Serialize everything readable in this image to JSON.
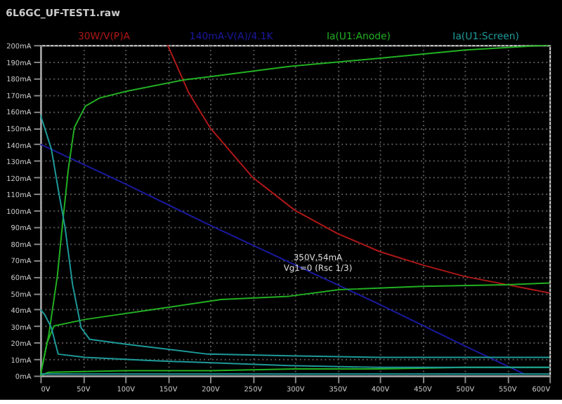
{
  "chart_data": {
    "type": "line",
    "title": "6L6GC_UF-TEST1.raw",
    "legend": "top",
    "grid": true,
    "marker": "none",
    "line_style": "solid",
    "xlim": [
      0,
      600
    ],
    "ylim": [
      0,
      200
    ],
    "xticks": [
      {
        "value": 0,
        "label": "0V"
      },
      {
        "value": 50,
        "label": "50V"
      },
      {
        "value": 100,
        "label": "100V"
      },
      {
        "value": 150,
        "label": "150V"
      },
      {
        "value": 200,
        "label": "200V"
      },
      {
        "value": 250,
        "label": "250V"
      },
      {
        "value": 300,
        "label": "300V"
      },
      {
        "value": 350,
        "label": "350V"
      },
      {
        "value": 400,
        "label": "400V"
      },
      {
        "value": 450,
        "label": "450V"
      },
      {
        "value": 500,
        "label": "500V"
      },
      {
        "value": 550,
        "label": "550V"
      },
      {
        "value": 600,
        "label": "600V"
      }
    ],
    "yticks": [
      {
        "value": 0,
        "label": "0mA"
      },
      {
        "value": 10,
        "label": "10mA"
      },
      {
        "value": 20,
        "label": "20mA"
      },
      {
        "value": 30,
        "label": "30mA"
      },
      {
        "value": 40,
        "label": "40mA"
      },
      {
        "value": 50,
        "label": "50mA"
      },
      {
        "value": 60,
        "label": "60mA"
      },
      {
        "value": 70,
        "label": "70mA"
      },
      {
        "value": 80,
        "label": "80mA"
      },
      {
        "value": 90,
        "label": "90mA"
      },
      {
        "value": 100,
        "label": "100mA"
      },
      {
        "value": 110,
        "label": "110mA"
      },
      {
        "value": 120,
        "label": "120mA"
      },
      {
        "value": 130,
        "label": "130mA"
      },
      {
        "value": 140,
        "label": "140mA"
      },
      {
        "value": 150,
        "label": "150mA"
      },
      {
        "value": 160,
        "label": "160mA"
      },
      {
        "value": 170,
        "label": "170mA"
      },
      {
        "value": 180,
        "label": "180mA"
      },
      {
        "value": 190,
        "label": "190mA"
      },
      {
        "value": 200,
        "label": "200mA"
      }
    ],
    "series": [
      {
        "name": "30W/V(P)A",
        "color": "#b01818",
        "x": [
          150,
          175,
          200,
          250,
          300,
          350,
          400,
          450,
          500,
          550,
          600
        ],
        "values": [
          200,
          171,
          150,
          120,
          100,
          86,
          75,
          67,
          60,
          55,
          50
        ]
      },
      {
        "name": "140mA-V(A)/4.1K",
        "color": "#1a1aa0",
        "x": [
          0,
          100,
          200,
          300,
          350,
          400,
          500,
          570
        ],
        "values": [
          140,
          116,
          91,
          67,
          55,
          43,
          18,
          1
        ]
      },
      {
        "name": "Ia(U1:Anode)",
        "color": "#22b022",
        "x": [
          0,
          10,
          20,
          26,
          33,
          40,
          53,
          70,
          101,
          170,
          202,
          293,
          400,
          501,
          600
        ],
        "values": [
          0,
          25,
          60,
          91,
          125,
          150,
          163,
          168,
          172,
          179,
          181,
          187,
          192,
          197,
          200
        ]
      },
      {
        "color": "#22b022",
        "x": [
          0,
          8,
          16,
          53,
          133,
          213,
          293,
          352,
          450,
          549,
          600
        ],
        "values": [
          0,
          20,
          30,
          34,
          40,
          46,
          48,
          52,
          54,
          55,
          56
        ]
      },
      {
        "color": "#22b022",
        "x": [
          0,
          10,
          100,
          200,
          300,
          400,
          500,
          600
        ],
        "values": [
          0,
          2,
          3,
          3,
          4,
          4,
          5,
          5
        ]
      },
      {
        "name": "Ia(U1:Screen)",
        "color": "#1e9a9a",
        "x": [
          0,
          13,
          22,
          29,
          38,
          48,
          58,
          101,
          197,
          293,
          400,
          600
        ],
        "values": [
          158,
          137,
          110,
          90,
          55,
          29,
          22,
          19,
          13,
          12,
          11,
          11
        ]
      },
      {
        "color": "#1e9a9a",
        "x": [
          0,
          5,
          13,
          21,
          53,
          133,
          293,
          400,
          600
        ],
        "values": [
          40,
          37,
          29,
          13,
          11,
          9,
          6,
          5,
          5
        ]
      },
      {
        "color": "#1e9a9a",
        "x": [
          0,
          100,
          300,
          600
        ],
        "values": [
          1,
          1,
          1,
          1
        ]
      }
    ],
    "annotations": [
      {
        "text": "350V,54mA\nVg1=0 (Rsc 1/3)",
        "x": 350,
        "y": 54
      }
    ]
  }
}
